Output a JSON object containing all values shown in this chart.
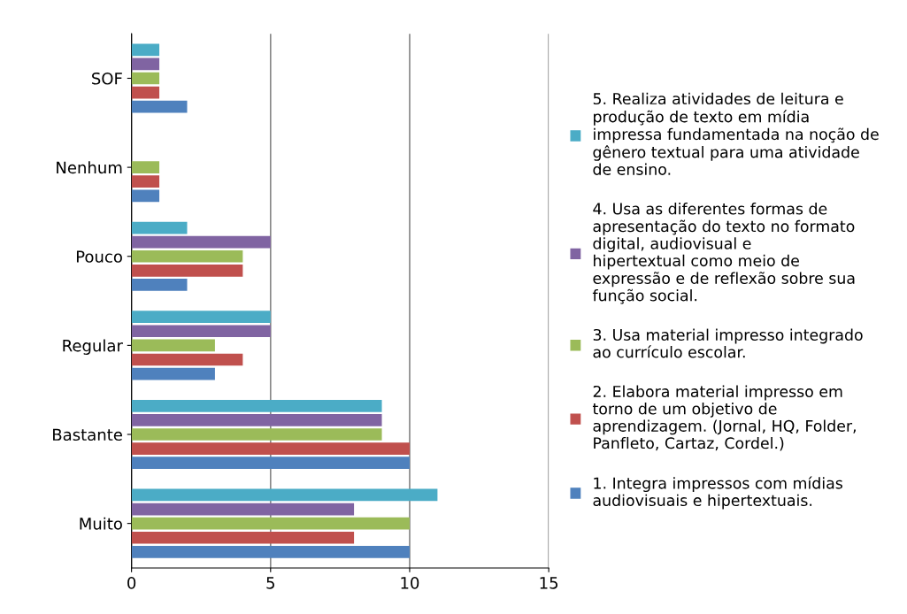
{
  "chart_data": {
    "type": "bar",
    "orientation": "horizontal",
    "categories": [
      "SOF",
      "Nenhum",
      "Pouco",
      "Regular",
      "Bastante",
      "Muito"
    ],
    "series": [
      {
        "name": "1. Integra impressos com mídias audiovisuais e hipertextuais.",
        "color": "#4f81bd",
        "values": [
          2,
          1,
          2,
          3,
          10,
          10
        ]
      },
      {
        "name": "2. Elabora material impresso em torno de um objetivo de aprendizagem. (Jornal, HQ, Folder, Panfleto, Cartaz, Cordel.)",
        "color": "#c0504d",
        "values": [
          1,
          1,
          4,
          4,
          10,
          8
        ]
      },
      {
        "name": "3. Usa material impresso integrado ao currículo escolar.",
        "color": "#9bbb59",
        "values": [
          1,
          1,
          4,
          3,
          9,
          10
        ]
      },
      {
        "name": "4. Usa as diferentes formas de apresentação do texto no formato digital, audiovisual e hipertextual como meio de expressão e de reflexão sobre sua função social.",
        "color": "#8064a2",
        "values": [
          1,
          null,
          5,
          5,
          9,
          8
        ]
      },
      {
        "name": "5. Realiza atividades de leitura e produção de texto em mídia impressa fundamentada na noção de gênero textual para uma atividade de ensino.",
        "color": "#4bacc6",
        "values": [
          1,
          null,
          2,
          5,
          9,
          11
        ]
      }
    ],
    "xlim": [
      0,
      15
    ],
    "xticks": [
      0,
      5,
      10,
      15
    ],
    "grid": "x",
    "legend": "right"
  }
}
